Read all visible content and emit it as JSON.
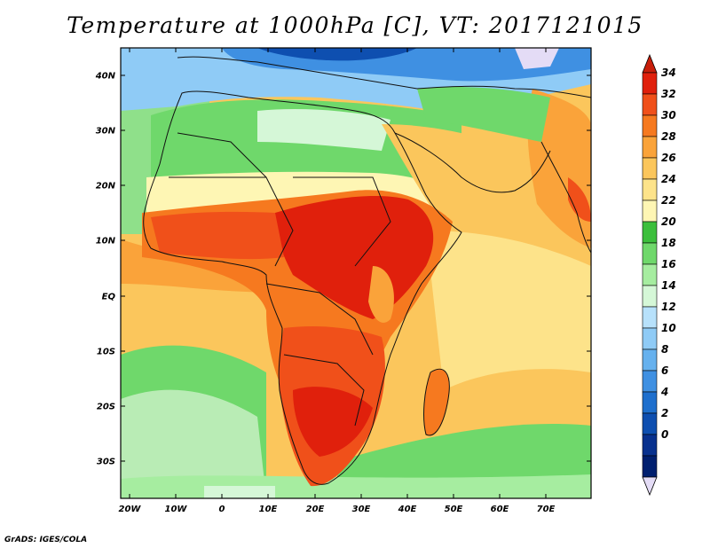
{
  "title": "Temperature at 1000hPa [C], VT: 2017121015",
  "credit": "GrADS: IGES/COLA",
  "lon_labels": [
    "20W",
    "10W",
    "0",
    "10E",
    "20E",
    "30E",
    "40E",
    "50E",
    "60E",
    "70E"
  ],
  "lat_labels": [
    "40N",
    "30N",
    "20N",
    "10N",
    "EQ",
    "10S",
    "20S",
    "30S"
  ],
  "colorbar": {
    "labels": [
      "34",
      "32",
      "30",
      "28",
      "26",
      "24",
      "22",
      "20",
      "18",
      "16",
      "14",
      "12",
      "10",
      "8",
      "6",
      "4",
      "2",
      "0"
    ],
    "colors": [
      "#e0200c",
      "#f0501a",
      "#f6791f",
      "#faa33a",
      "#fbc65c",
      "#fde38a",
      "#fef6b4",
      "#3cbf3c",
      "#6fd86b",
      "#a6eda0",
      "#d5f7d7",
      "#b7e1fb",
      "#8fcbf6",
      "#66b1ee",
      "#3f90e2",
      "#1e6fcd",
      "#0e4fb0",
      "#08318e",
      "#001f6f"
    ],
    "top_arrow_color": "#c81e0a",
    "bottom_arrow_color": "#e4dcf6"
  }
}
